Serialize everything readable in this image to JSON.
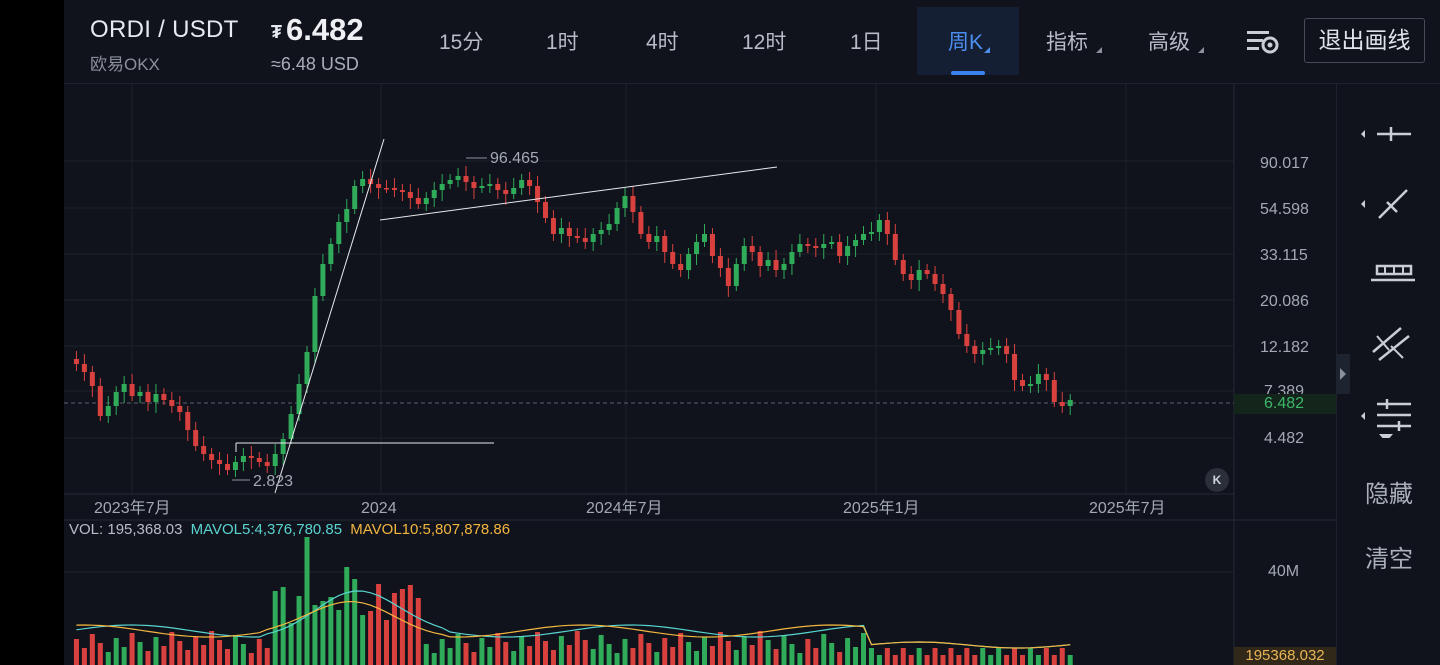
{
  "header": {
    "pair": "ORDI / USDT",
    "exchange": "欧易OKX",
    "price_symbol": "₮",
    "price": "6.482",
    "price_usd": "≈6.48 USD",
    "tabs": [
      {
        "label": "15分"
      },
      {
        "label": "1时"
      },
      {
        "label": "4时"
      },
      {
        "label": "12时"
      },
      {
        "label": "1日"
      },
      {
        "label": "周K",
        "active": true
      },
      {
        "label": "指标"
      },
      {
        "label": "高级"
      }
    ],
    "exit_label": "退出画线",
    "settings_icon": "settings-sliders-icon"
  },
  "chart": {
    "price_axis": [
      "90.017",
      "54.598",
      "33.115",
      "20.086",
      "12.182",
      "7.389",
      "4.482"
    ],
    "current_price_tag": "6.482",
    "high_label": "96.465",
    "low_label": "2.823",
    "date_labels": [
      "2023年7月",
      "2024",
      "2024年7月",
      "2025年1月",
      "2025年7月"
    ],
    "colors": {
      "up": "#2fab5a",
      "down": "#d9413f",
      "ma5": "#59d4d0",
      "ma10": "#f2b640",
      "background": "#10131b"
    }
  },
  "volume": {
    "vol_label": "VOL: 195,368.03",
    "mavol5_label": "MAVOL5:4,376,780.85",
    "mavol10_label": "MAVOL10:5,807,878.86",
    "axis_label": "40M",
    "last_value": "195368.032"
  },
  "toolbar": {
    "items": [
      {
        "icon": "horizontal-line-icon"
      },
      {
        "icon": "trend-line-icon"
      },
      {
        "icon": "horizontal-ray-icon"
      },
      {
        "icon": "parallel-channel-icon"
      },
      {
        "icon": "fibonacci-icon"
      }
    ],
    "hide_label": "隐藏",
    "clear_label": "清空"
  }
}
